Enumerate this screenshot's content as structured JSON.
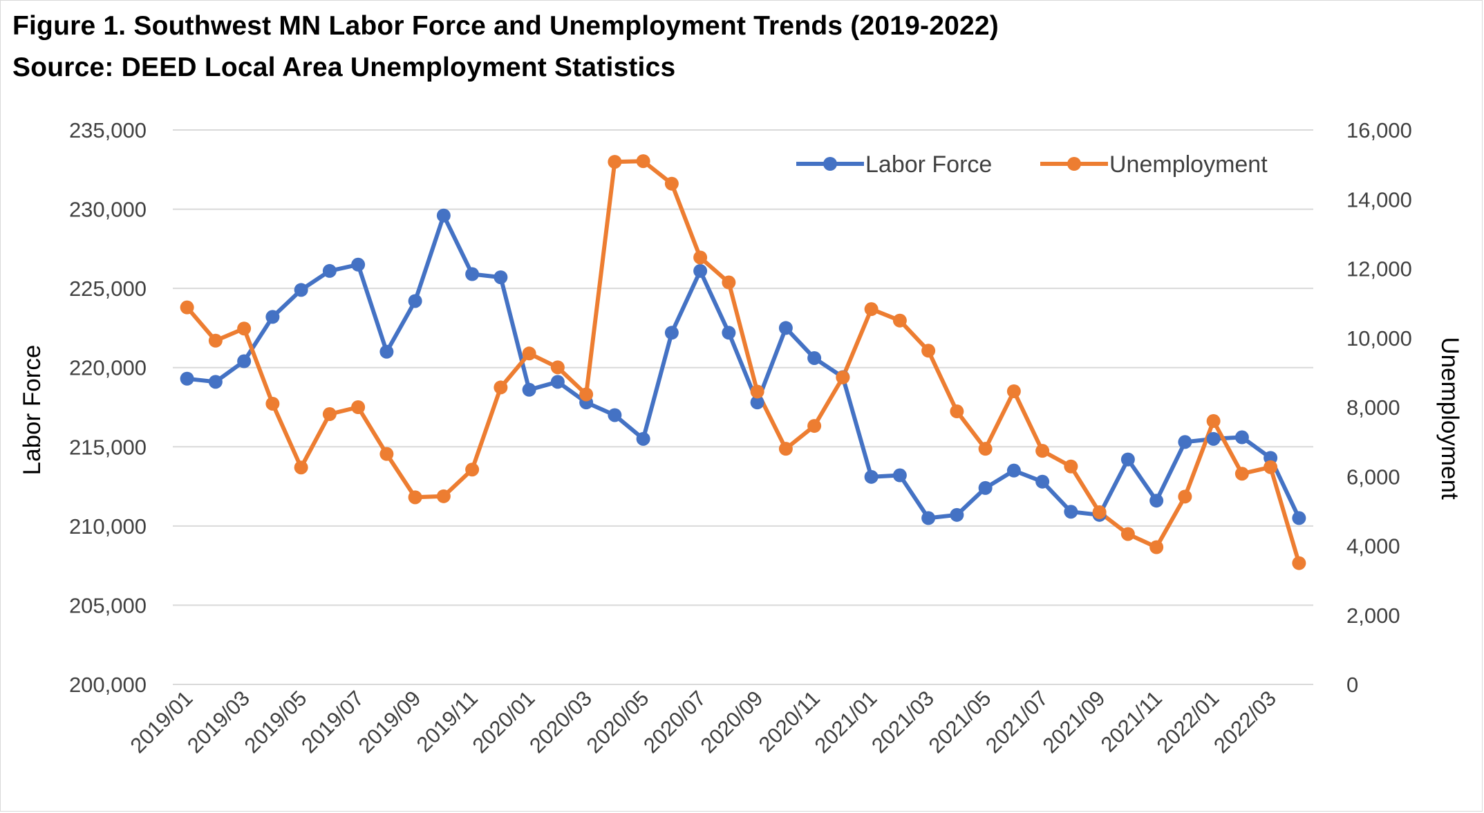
{
  "chart_data": {
    "type": "line",
    "title": "Figure 1. Southwest MN Labor Force and Unemployment Trends (2019-2022)",
    "subtitle": "Source: DEED Local Area Unemployment Statistics",
    "xlabel": "",
    "ylabel": "Labor Force",
    "y2label": "Unemployment",
    "ylim": [
      200000,
      235000
    ],
    "y2lim": [
      0,
      16000
    ],
    "yticks": [
      "200,000",
      "205,000",
      "210,000",
      "215,000",
      "220,000",
      "225,000",
      "230,000",
      "235,000"
    ],
    "y2ticks": [
      "0",
      "2,000",
      "4,000",
      "6,000",
      "8,000",
      "10,000",
      "12,000",
      "14,000",
      "16,000"
    ],
    "grid": true,
    "legend_position": "top-right",
    "categories": [
      "2019/01",
      "2019/02",
      "2019/03",
      "2019/04",
      "2019/05",
      "2019/06",
      "2019/07",
      "2019/08",
      "2019/09",
      "2019/10",
      "2019/11",
      "2019/12",
      "2020/01",
      "2020/02",
      "2020/03",
      "2020/04",
      "2020/05",
      "2020/06",
      "2020/07",
      "2020/08",
      "2020/09",
      "2020/10",
      "2020/11",
      "2020/12",
      "2021/01",
      "2021/02",
      "2021/03",
      "2021/04",
      "2021/05",
      "2021/06",
      "2021/07",
      "2021/08",
      "2021/09",
      "2021/10",
      "2021/11",
      "2021/12",
      "2022/01",
      "2022/02",
      "2022/03",
      "2022/04"
    ],
    "xtick_labels": [
      "2019/01",
      "2019/03",
      "2019/05",
      "2019/07",
      "2019/09",
      "2019/11",
      "2020/01",
      "2020/03",
      "2020/05",
      "2020/07",
      "2020/09",
      "2020/11",
      "2021/01",
      "2021/03",
      "2021/05",
      "2021/07",
      "2021/09",
      "2021/11",
      "2022/01",
      "2022/03"
    ],
    "series": [
      {
        "name": "Labor Force",
        "axis": "left",
        "color": "#4472C4",
        "values": [
          219300,
          219100,
          220400,
          223200,
          224900,
          226100,
          226500,
          221000,
          224200,
          229600,
          225900,
          225700,
          218600,
          219100,
          217800,
          217000,
          215500,
          222200,
          226100,
          222200,
          217800,
          222500,
          220600,
          219400,
          213100,
          213200,
          210500,
          210700,
          212400,
          213500,
          212800,
          210900,
          210700,
          214200,
          211600,
          215300,
          215500,
          215600,
          214300,
          210500
        ]
      },
      {
        "name": "Unemployment",
        "axis": "right",
        "color": "#ED7D31",
        "values": [
          10880,
          9920,
          10270,
          8100,
          6260,
          7800,
          8000,
          6650,
          5400,
          5430,
          6200,
          8570,
          9550,
          9150,
          8370,
          15080,
          15100,
          14450,
          12320,
          11600,
          8450,
          6800,
          7460,
          8860,
          10830,
          10500,
          9630,
          7880,
          6800,
          8460,
          6740,
          6290,
          4970,
          4340,
          3960,
          5420,
          7600,
          6080,
          6270,
          3500
        ]
      }
    ]
  }
}
